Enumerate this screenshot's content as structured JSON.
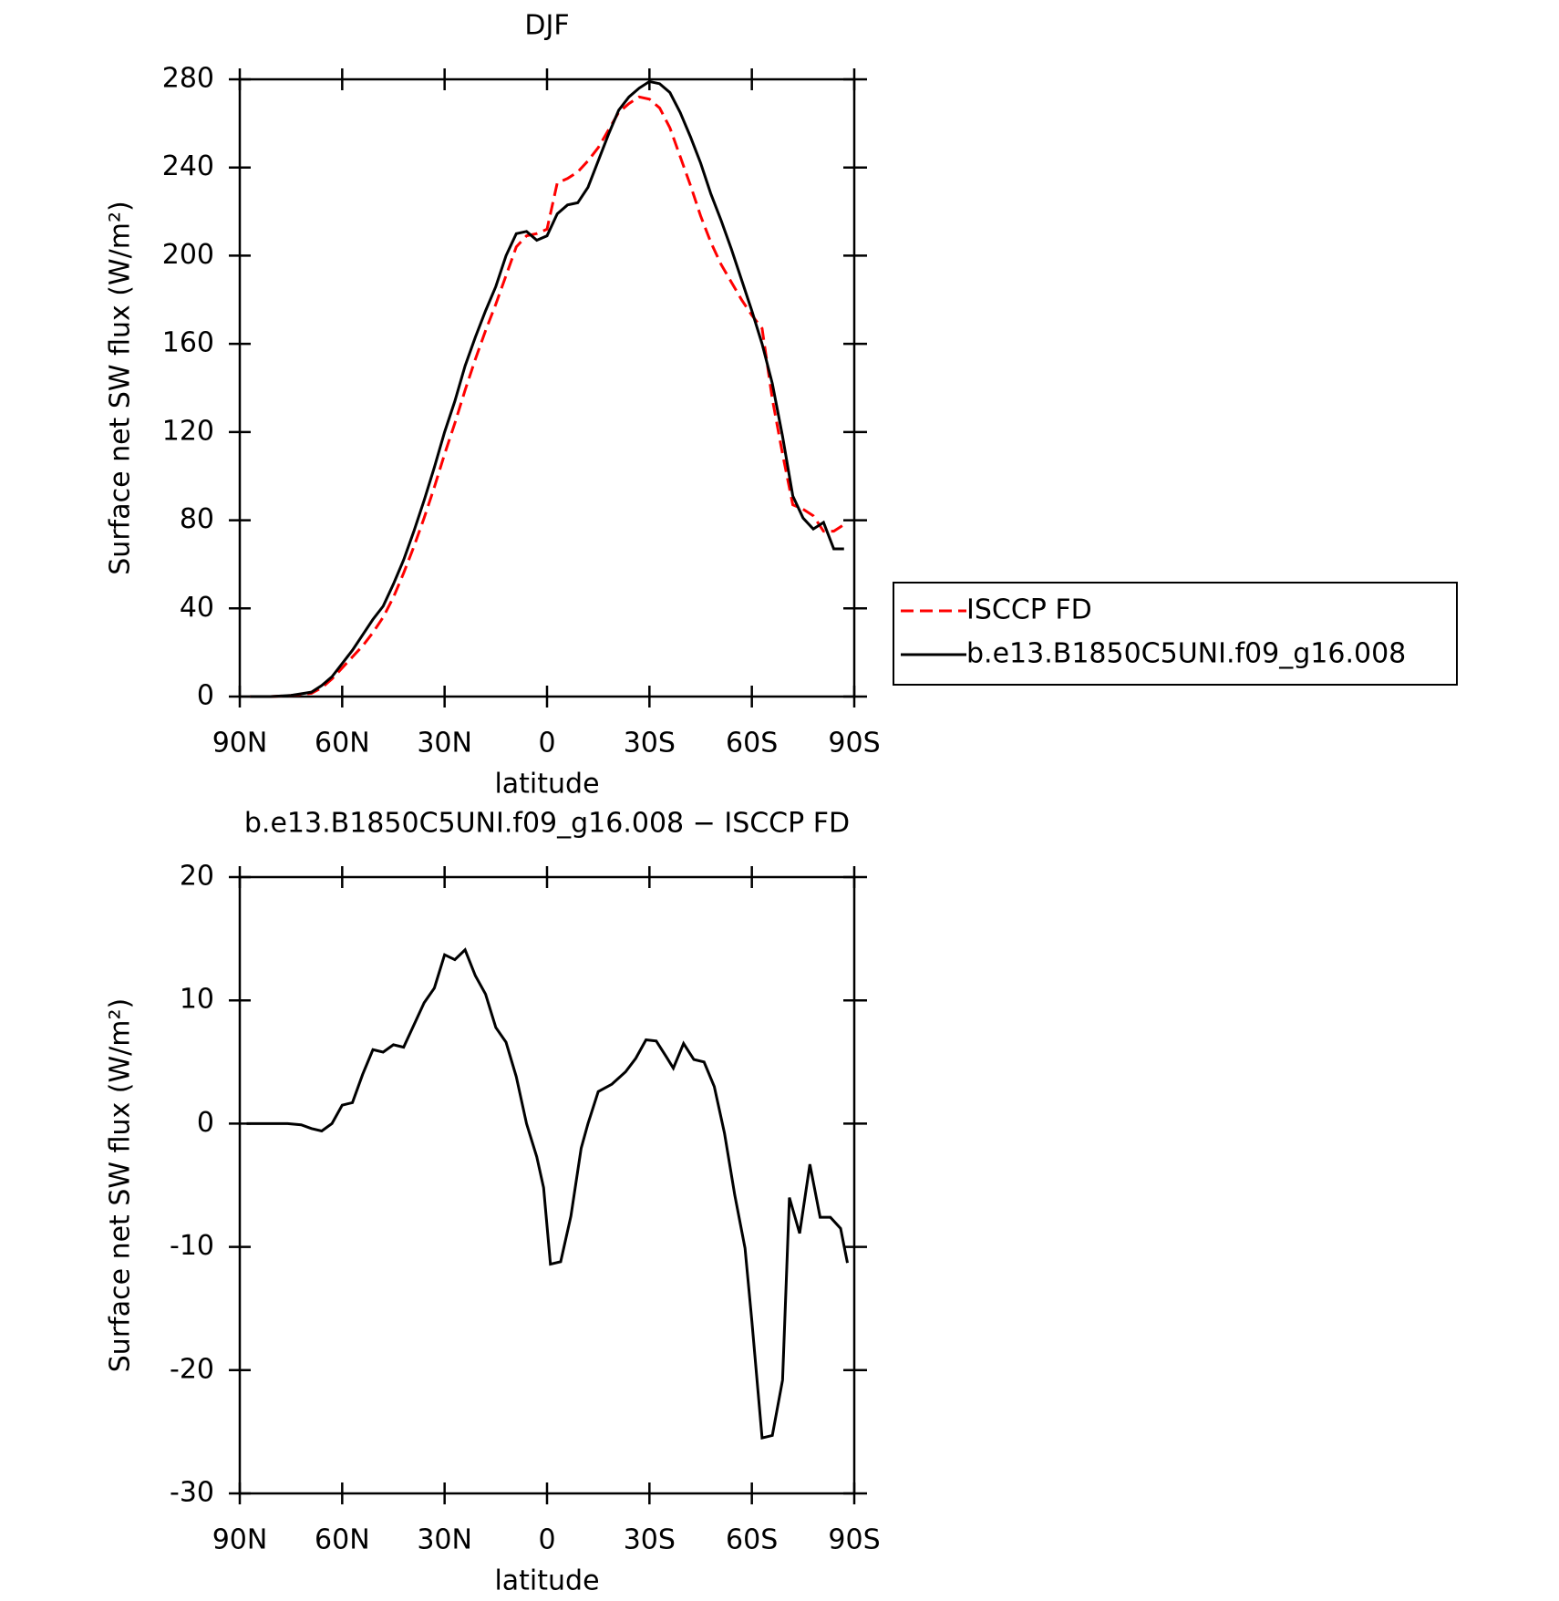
{
  "chart_data": [
    {
      "type": "line",
      "title": "DJF",
      "xlabel": "latitude",
      "ylabel": "Surface net SW flux (W/m²)",
      "x": [
        87,
        81,
        75,
        69,
        66,
        63,
        60,
        57,
        54,
        51,
        48,
        45,
        42,
        39,
        36,
        33,
        30,
        27,
        24,
        21,
        18,
        15,
        12,
        9,
        6,
        3,
        0,
        -3,
        -6,
        -9,
        -12,
        -15,
        -18,
        -21,
        -24,
        -27,
        -30,
        -33,
        -36,
        -39,
        -42,
        -45,
        -48,
        -51,
        -54,
        -57,
        -60,
        -63,
        -66,
        -69,
        -72,
        -75,
        -78,
        -81,
        -84,
        -87
      ],
      "series": [
        {
          "name": "ISCCP FD",
          "color": "#ff0000",
          "dashed": true,
          "values": [
            0,
            0,
            0.5,
            1.5,
            4,
            8,
            13,
            18,
            23,
            29,
            36,
            45,
            56,
            68,
            81,
            95,
            110,
            124,
            139,
            153,
            166,
            178,
            191,
            204,
            209,
            210,
            212,
            233,
            235,
            238,
            243,
            249,
            257,
            265,
            269,
            272,
            271,
            267,
            258,
            245,
            232,
            218,
            206,
            196,
            188,
            180,
            173,
            167,
            135,
            110,
            87,
            85,
            82,
            75,
            75,
            78
          ]
        },
        {
          "name": "b.e13.B1850C5UNI.f09_g16.008",
          "color": "#000000",
          "dashed": false,
          "values": [
            0,
            0,
            0.5,
            2,
            5,
            9,
            15,
            21,
            28,
            35,
            41,
            51,
            62,
            75,
            89,
            104,
            120,
            134,
            150,
            163,
            175,
            186,
            200,
            210,
            211,
            207,
            209,
            219,
            223,
            224,
            231,
            243,
            255,
            266,
            272,
            276,
            279,
            278,
            274,
            265,
            254,
            242,
            228,
            216,
            203,
            189,
            175,
            160,
            142,
            118,
            91,
            81,
            76,
            79,
            67,
            67
          ]
        }
      ],
      "xlim": [
        90,
        -90
      ],
      "xticks": [
        {
          "value": 90,
          "label": "90N"
        },
        {
          "value": 60,
          "label": "60N"
        },
        {
          "value": 30,
          "label": "30N"
        },
        0,
        {
          "value": -30,
          "label": "30S"
        },
        {
          "value": -60,
          "label": "60S"
        },
        {
          "value": -90,
          "label": "90S"
        }
      ],
      "ylim": [
        0,
        280
      ],
      "yticks": [
        0,
        40,
        80,
        120,
        160,
        200,
        240,
        280
      ],
      "legend": "right"
    },
    {
      "type": "line",
      "title": "b.e13.B1850C5UNI.f09_g16.008 − ISCCP FD",
      "xlabel": "latitude",
      "ylabel": "Surface net SW flux (W/m²)",
      "x": [
        88,
        82,
        76,
        72,
        69,
        66,
        63,
        60,
        57,
        54,
        51,
        48,
        45,
        42,
        39,
        36,
        33,
        30,
        27,
        24,
        21,
        18,
        15,
        12,
        9,
        6,
        3,
        1,
        -1,
        -4,
        -7,
        -10,
        -12,
        -15,
        -19,
        -23,
        -26,
        -29,
        -32,
        -35,
        -37,
        -40,
        -43,
        -46,
        -49,
        -52,
        -55,
        -58,
        -60,
        -63,
        -66,
        -69,
        -71,
        -74,
        -77,
        -80,
        -83,
        -86,
        -88
      ],
      "series": [
        {
          "color": "#000000",
          "dashed": false,
          "values": [
            0,
            0,
            0,
            -0.1,
            -0.4,
            -0.6,
            0,
            1.5,
            1.7,
            4,
            6,
            5.8,
            6.4,
            6.2,
            8,
            9.8,
            11,
            13.7,
            13.3,
            14.1,
            12,
            10.5,
            7.8,
            6.6,
            3.8,
            0,
            -2.7,
            -5.2,
            -11.4,
            -11.2,
            -7.5,
            -2,
            0,
            2.6,
            3.2,
            4.2,
            5.3,
            6.8,
            6.7,
            5.4,
            4.5,
            6.5,
            5.2,
            5,
            3,
            -0.8,
            -5.8,
            -10.1,
            -16,
            -25.5,
            -25.3,
            -20.8,
            -6,
            -8.9,
            -3.3,
            -7.6,
            -7.6,
            -8.5,
            -11.3
          ]
        }
      ],
      "xlim": [
        90,
        -90
      ],
      "xticks": [
        {
          "value": 90,
          "label": "90N"
        },
        {
          "value": 60,
          "label": "60N"
        },
        {
          "value": 30,
          "label": "30N"
        },
        0,
        {
          "value": -30,
          "label": "30S"
        },
        {
          "value": -60,
          "label": "60S"
        },
        {
          "value": -90,
          "label": "90S"
        }
      ],
      "ylim": [
        -30,
        20
      ],
      "yticks": [
        -30,
        -20,
        -10,
        0,
        10,
        20
      ]
    }
  ]
}
